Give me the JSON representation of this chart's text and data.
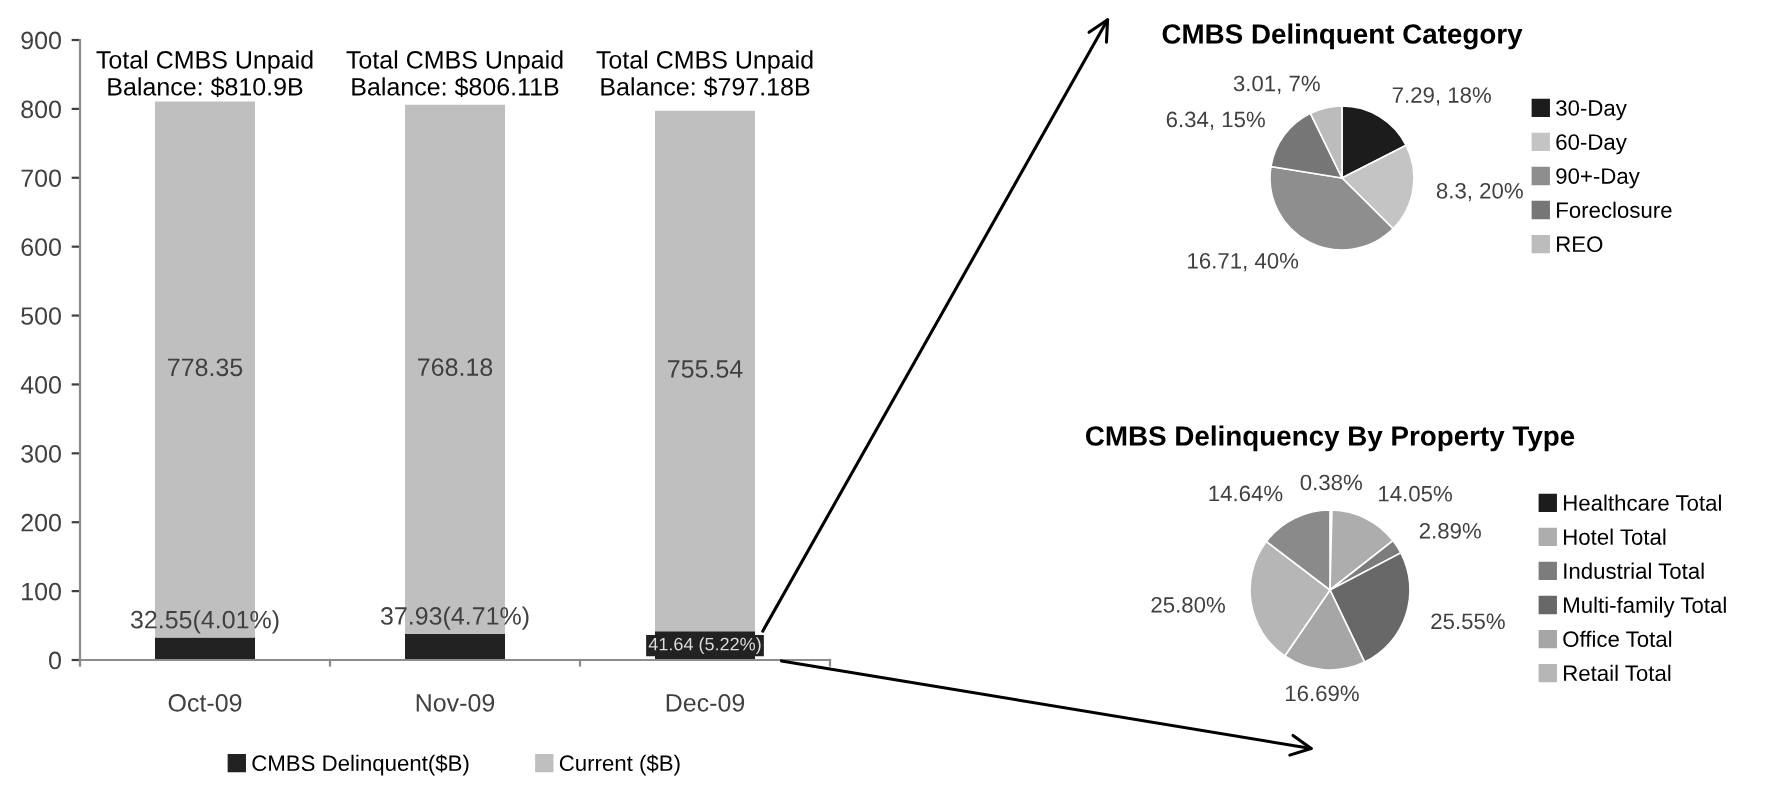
{
  "chart_data": [
    {
      "type": "bar",
      "stacked": true,
      "categories": [
        "Oct-09",
        "Nov-09",
        "Dec-09"
      ],
      "series": [
        {
          "name": "CMBS Delinquent($B)",
          "color": "#222222",
          "values": [
            32.55,
            37.93,
            41.64
          ],
          "value_labels": [
            "32.55(4.01%)",
            "37.93(4.71%)",
            "41.64 (5.22%)"
          ]
        },
        {
          "name": "Current ($B)",
          "color": "#bfbfbf",
          "values": [
            778.35,
            768.18,
            755.54
          ],
          "value_labels": [
            "778.35",
            "768.18",
            "755.54"
          ]
        }
      ],
      "totals": [
        "Total CMBS Unpaid\nBalance: $810.9B",
        "Total CMBS Unpaid\nBalance: $806.11B",
        "Total CMBS Unpaid\nBalance: $797.18B"
      ],
      "ylim": [
        0,
        900
      ],
      "yticks": [
        0,
        100,
        200,
        300,
        400,
        500,
        600,
        700,
        800,
        900
      ],
      "grid": false,
      "legend": "bottom"
    },
    {
      "type": "pie",
      "title": "CMBS Delinquent Category",
      "categories": [
        "30-Day",
        "60-Day",
        "90+-Day",
        "Foreclosure",
        "REO"
      ],
      "values": [
        7.29,
        8.3,
        16.71,
        6.34,
        3.01
      ],
      "value_labels": [
        "7.29, 18%",
        "8.3, 20%",
        "16.71, 40%",
        "6.34, 15%",
        "3.01, 7%"
      ],
      "colors": [
        "#1c1c1c",
        "#c4c4c4",
        "#8e8e8e",
        "#767676",
        "#bcbcbc"
      ],
      "legend": "right"
    },
    {
      "type": "pie",
      "title": "CMBS Delinquency By Property Type",
      "categories": [
        "Healthcare Total",
        "Hotel Total",
        "Industrial Total",
        "Multi-family Total",
        "Office Total",
        "Retail Total",
        null
      ],
      "values": [
        0.38,
        14.05,
        2.89,
        25.55,
        16.69,
        25.8,
        14.64
      ],
      "value_labels": [
        "0.38%",
        "14.05%",
        "2.89%",
        "25.55%",
        "16.69%",
        "25.80%",
        "14.64%"
      ],
      "colors": [
        "#1c1c1c",
        "#adadad",
        "#7c7c7c",
        "#686868",
        "#a6a6a6",
        "#b6b6b6",
        "#8a8a8a"
      ],
      "legend": "right"
    }
  ]
}
